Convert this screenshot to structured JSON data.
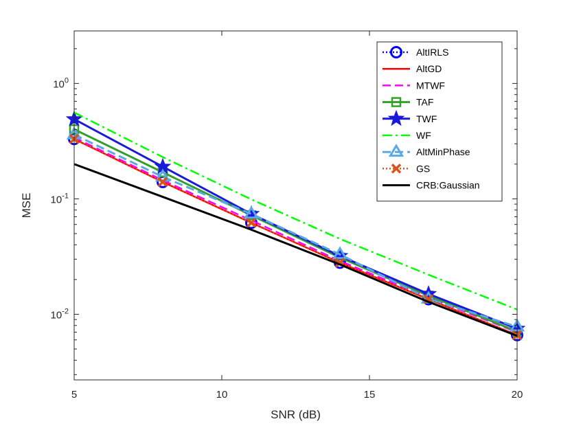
{
  "chart_data": {
    "type": "line",
    "title": "",
    "xlabel": "SNR (dB)",
    "ylabel": "MSE",
    "yscale": "log",
    "xlim": [
      5,
      20
    ],
    "ylim": [
      0.0027,
      2.85
    ],
    "grid": false,
    "legend_position": "top-right",
    "x": [
      5,
      8,
      11,
      14,
      17,
      20
    ],
    "x_ticks": [
      {
        "value": 5,
        "label": "5"
      },
      {
        "value": 10,
        "label": "10"
      },
      {
        "value": 15,
        "label": "15"
      },
      {
        "value": 20,
        "label": "20"
      }
    ],
    "y_ticks": [
      {
        "value": 1,
        "base": "10",
        "exp": "0"
      },
      {
        "value": 0.1,
        "base": "10",
        "exp": "-1"
      },
      {
        "value": 0.01,
        "base": "10",
        "exp": "-2"
      }
    ],
    "series": [
      {
        "name": "AltIRLS",
        "color": "#0000ff",
        "dash": "2,3",
        "width": 2.5,
        "marker": "circle",
        "values": [
          0.33,
          0.14,
          0.062,
          0.028,
          0.0135,
          0.0066
        ]
      },
      {
        "name": "AltGD",
        "color": "#ff0000",
        "dash": "",
        "width": 2.5,
        "marker": "none",
        "values": [
          0.33,
          0.14,
          0.062,
          0.028,
          0.0135,
          0.0066
        ]
      },
      {
        "name": "MTWF",
        "color": "#ff00ff",
        "dash": "12,6",
        "width": 2.5,
        "marker": "none",
        "values": [
          0.34,
          0.145,
          0.065,
          0.029,
          0.014,
          0.007
        ]
      },
      {
        "name": "TAF",
        "color": "#33a02c",
        "dash": "",
        "width": 3,
        "marker": "square",
        "values": [
          0.4,
          0.17,
          0.072,
          0.031,
          0.0145,
          0.0071
        ]
      },
      {
        "name": "TWF",
        "color": "#1a1adb",
        "dash": "",
        "width": 3,
        "marker": "star",
        "values": [
          0.49,
          0.19,
          0.074,
          0.032,
          0.015,
          0.0075
        ]
      },
      {
        "name": "WF",
        "color": "#00ff00",
        "dash": "14,5,3,5",
        "width": 2.5,
        "marker": "none",
        "values": [
          0.56,
          0.23,
          0.099,
          0.045,
          0.022,
          0.011
        ]
      },
      {
        "name": "AltMinPhase",
        "color": "#5aa9e6",
        "dash": "12,6",
        "width": 3,
        "marker": "triangle",
        "values": [
          0.36,
          0.155,
          0.074,
          0.033,
          0.0136,
          0.0078
        ]
      },
      {
        "name": "GS",
        "color": "#d95319",
        "dash": "2,3",
        "width": 2.5,
        "marker": "x",
        "values": [
          0.33,
          0.14,
          0.062,
          0.028,
          0.0135,
          0.0066
        ]
      },
      {
        "name": "CRB:Gaussian",
        "color": "#000000",
        "dash": "",
        "width": 3,
        "marker": "none",
        "values": [
          0.2,
          0.104,
          0.054,
          0.027,
          0.0128,
          0.0065
        ]
      }
    ]
  }
}
